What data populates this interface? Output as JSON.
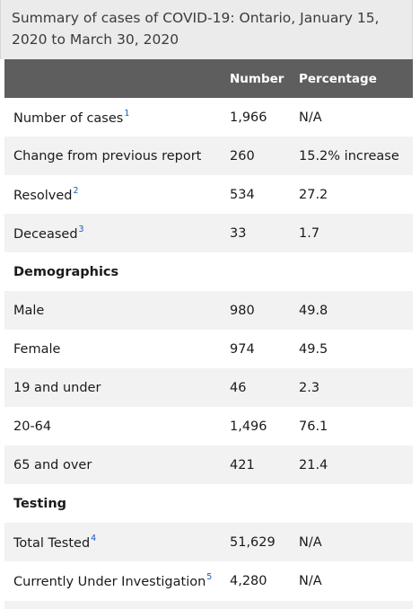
{
  "caption": "Summary of cases of COVID-19: Ontario, January 15, 2020 to March 30, 2020",
  "headers": [
    "",
    "Number",
    "Percentage"
  ],
  "rows": [
    {
      "label": "Number of cases",
      "sup": "1",
      "number": "1,966",
      "percentage": "N/A"
    },
    {
      "label": "Change from previous report",
      "sup": "",
      "number": "260",
      "percentage": "15.2% increase"
    },
    {
      "label": "Resolved",
      "sup": "2",
      "number": "534",
      "percentage": "27.2"
    },
    {
      "label": "Deceased",
      "sup": "3",
      "number": "33",
      "percentage": "1.7"
    },
    {
      "label": "Demographics",
      "section": true
    },
    {
      "label": "Male",
      "number": "980",
      "percentage": "49.8"
    },
    {
      "label": "Female",
      "number": "974",
      "percentage": "49.5"
    },
    {
      "label": "19 and under",
      "number": "46",
      "percentage": "2.3"
    },
    {
      "label": "20-64",
      "number": "1,496",
      "percentage": "76.1"
    },
    {
      "label": "65 and over",
      "number": "421",
      "percentage": "21.4"
    },
    {
      "label": "Testing",
      "section": true
    },
    {
      "label": "Total Tested",
      "sup": "4",
      "number": "51,629",
      "percentage": "N/A"
    },
    {
      "label": "Currently Under Investigation",
      "sup": "5",
      "number": "4,280",
      "percentage": "N/A"
    }
  ]
}
